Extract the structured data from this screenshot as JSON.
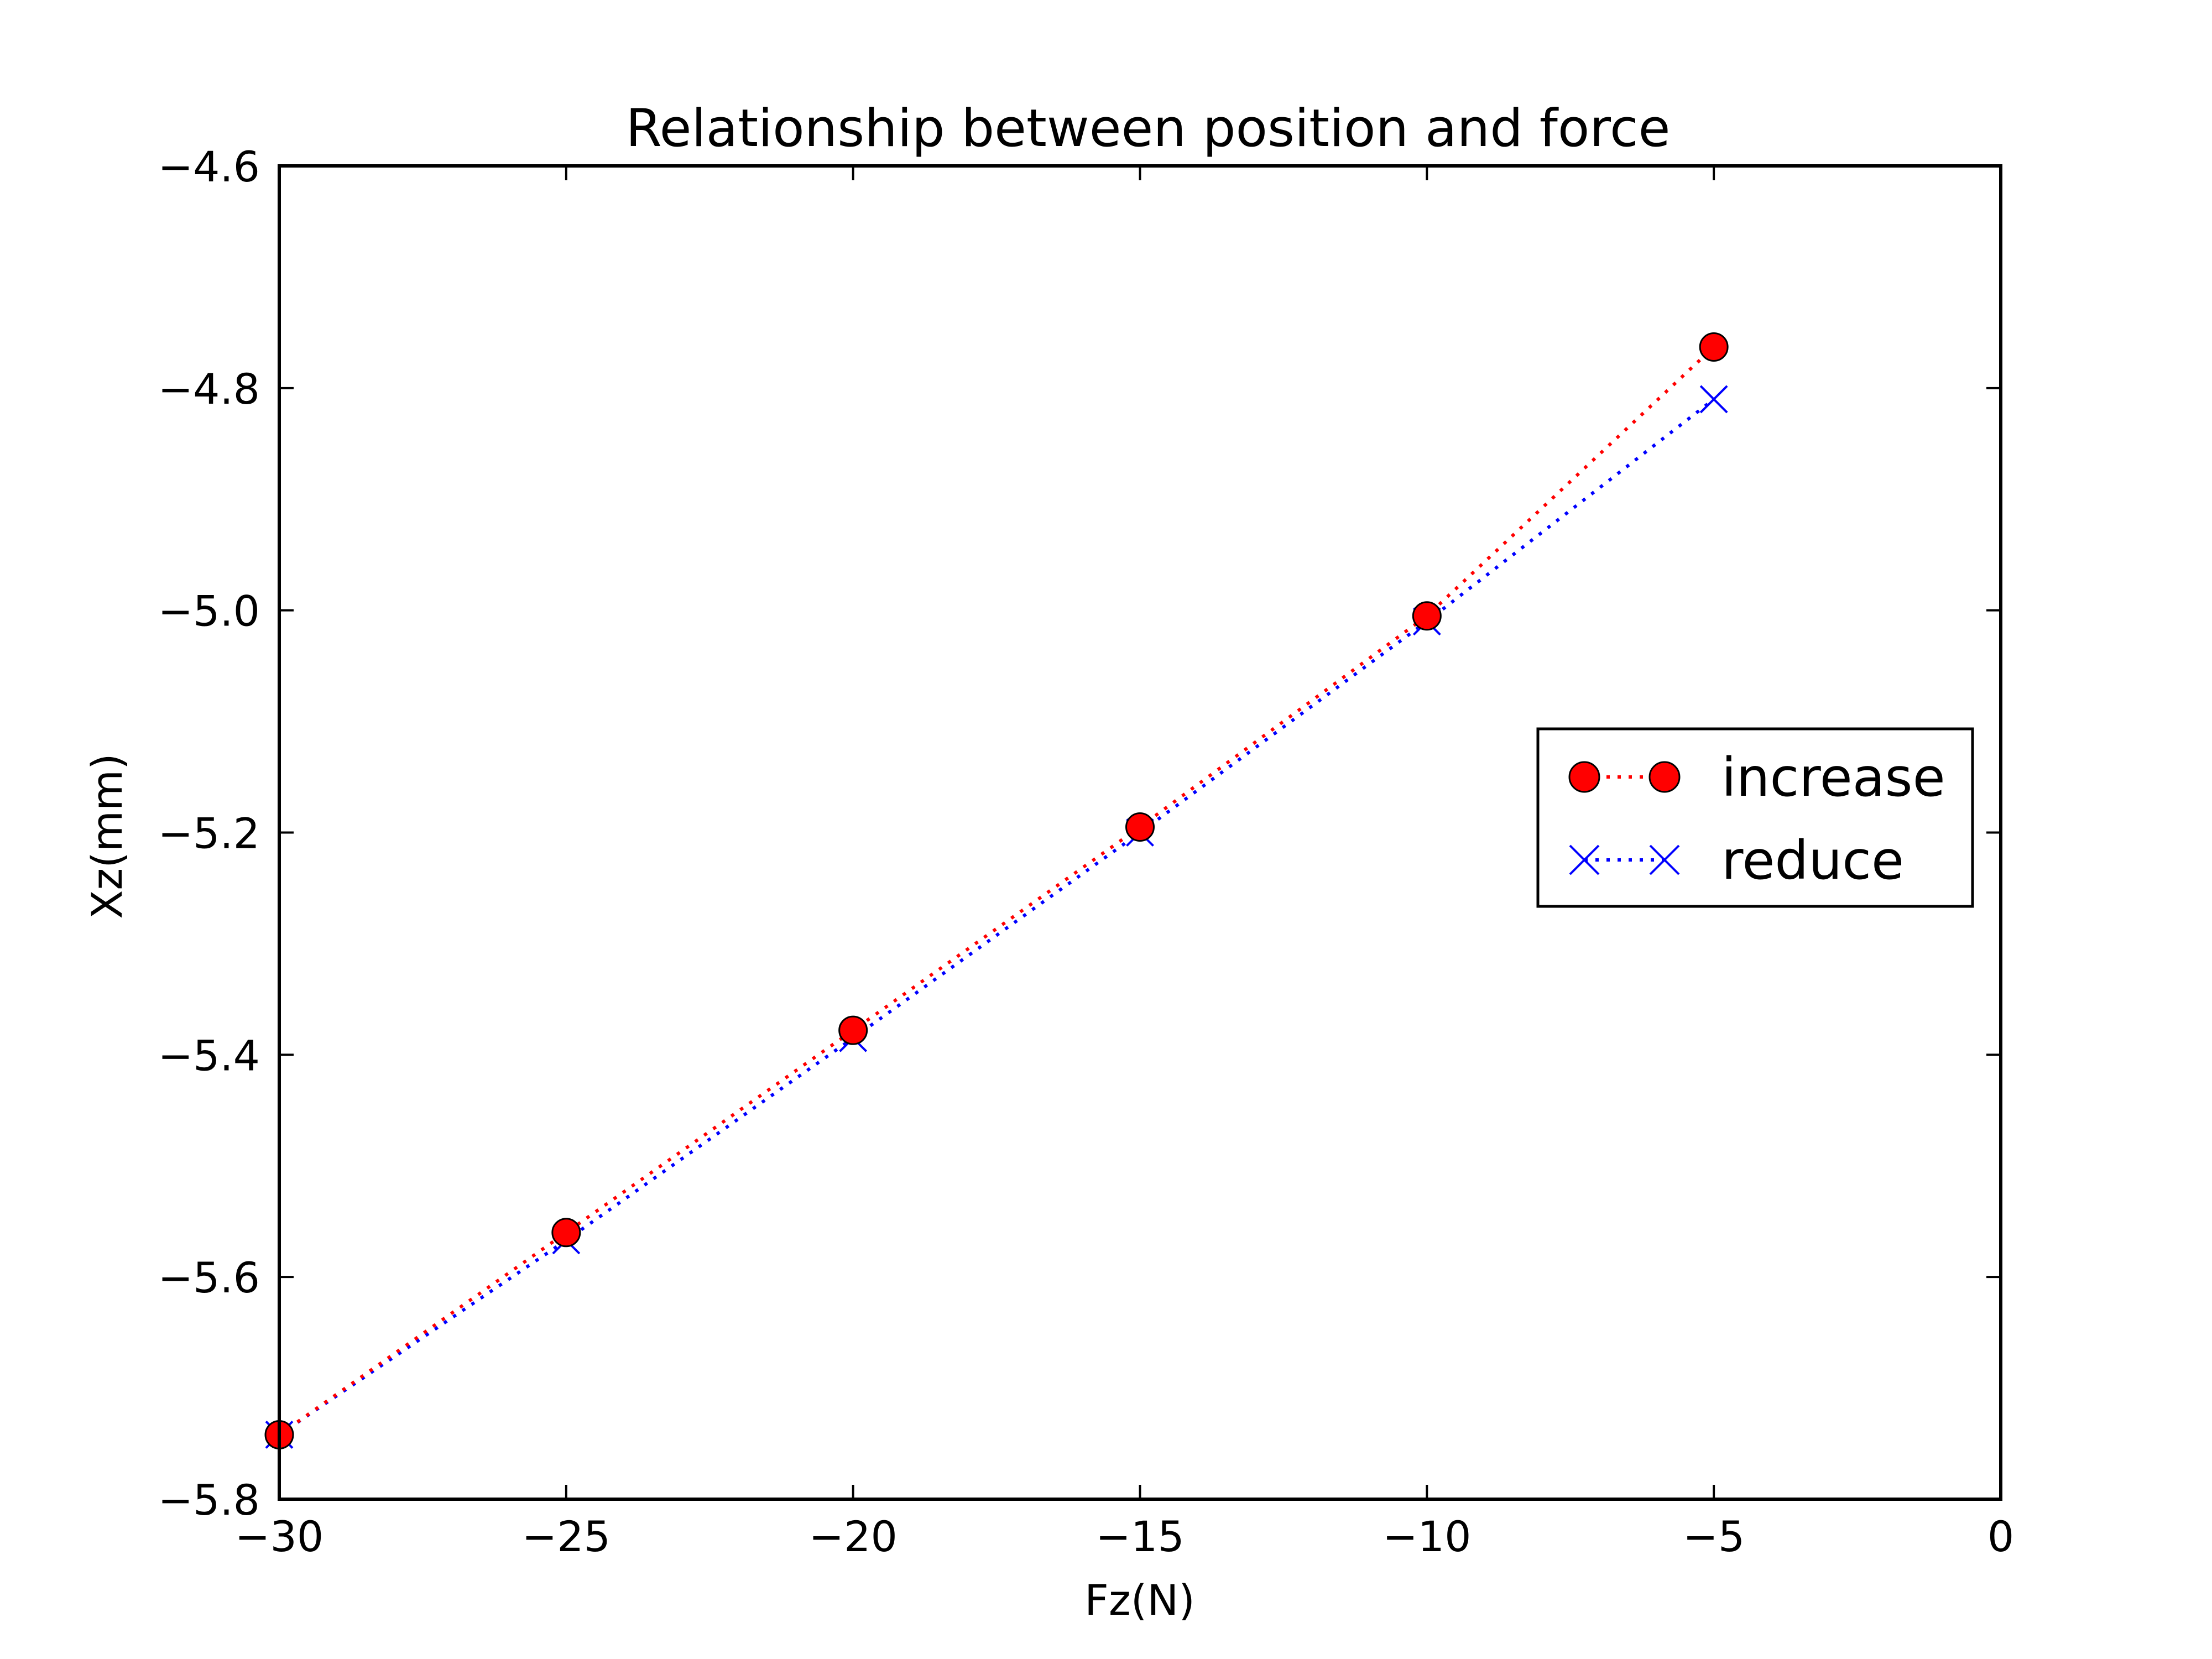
{
  "chart_data": {
    "type": "line",
    "title": "Relationship between position and force",
    "xlabel": "Fz(N)",
    "ylabel": "Xz(mm)",
    "xlim": [
      -30,
      0
    ],
    "ylim": [
      -5.8,
      -4.6
    ],
    "xticks": [
      -30,
      -25,
      -20,
      -15,
      -10,
      -5,
      0
    ],
    "yticks": [
      -5.8,
      -5.6,
      -5.4,
      -5.2,
      -5.0,
      -4.8,
      -4.6
    ],
    "xtick_labels": [
      "−30",
      "−25",
      "−20",
      "−15",
      "−10",
      "−5",
      "0"
    ],
    "ytick_labels": [
      "−5.8",
      "−5.6",
      "−5.4",
      "−5.2",
      "−5.0",
      "−4.8",
      "−4.6"
    ],
    "grid": false,
    "legend_position": "center-right",
    "series": [
      {
        "name": "increase",
        "color": "#ff0000",
        "marker": "circle",
        "line_style": "dotted",
        "x": [
          -30,
          -25,
          -20,
          -15,
          -10,
          -5
        ],
        "y": [
          -5.742,
          -5.56,
          -5.378,
          -5.195,
          -5.005,
          -4.763
        ]
      },
      {
        "name": "reduce",
        "color": "#0000ff",
        "marker": "x",
        "line_style": "dotted",
        "x": [
          -30,
          -25,
          -20,
          -15,
          -10,
          -5
        ],
        "y": [
          -5.742,
          -5.567,
          -5.385,
          -5.2,
          -5.01,
          -4.81
        ]
      }
    ]
  }
}
